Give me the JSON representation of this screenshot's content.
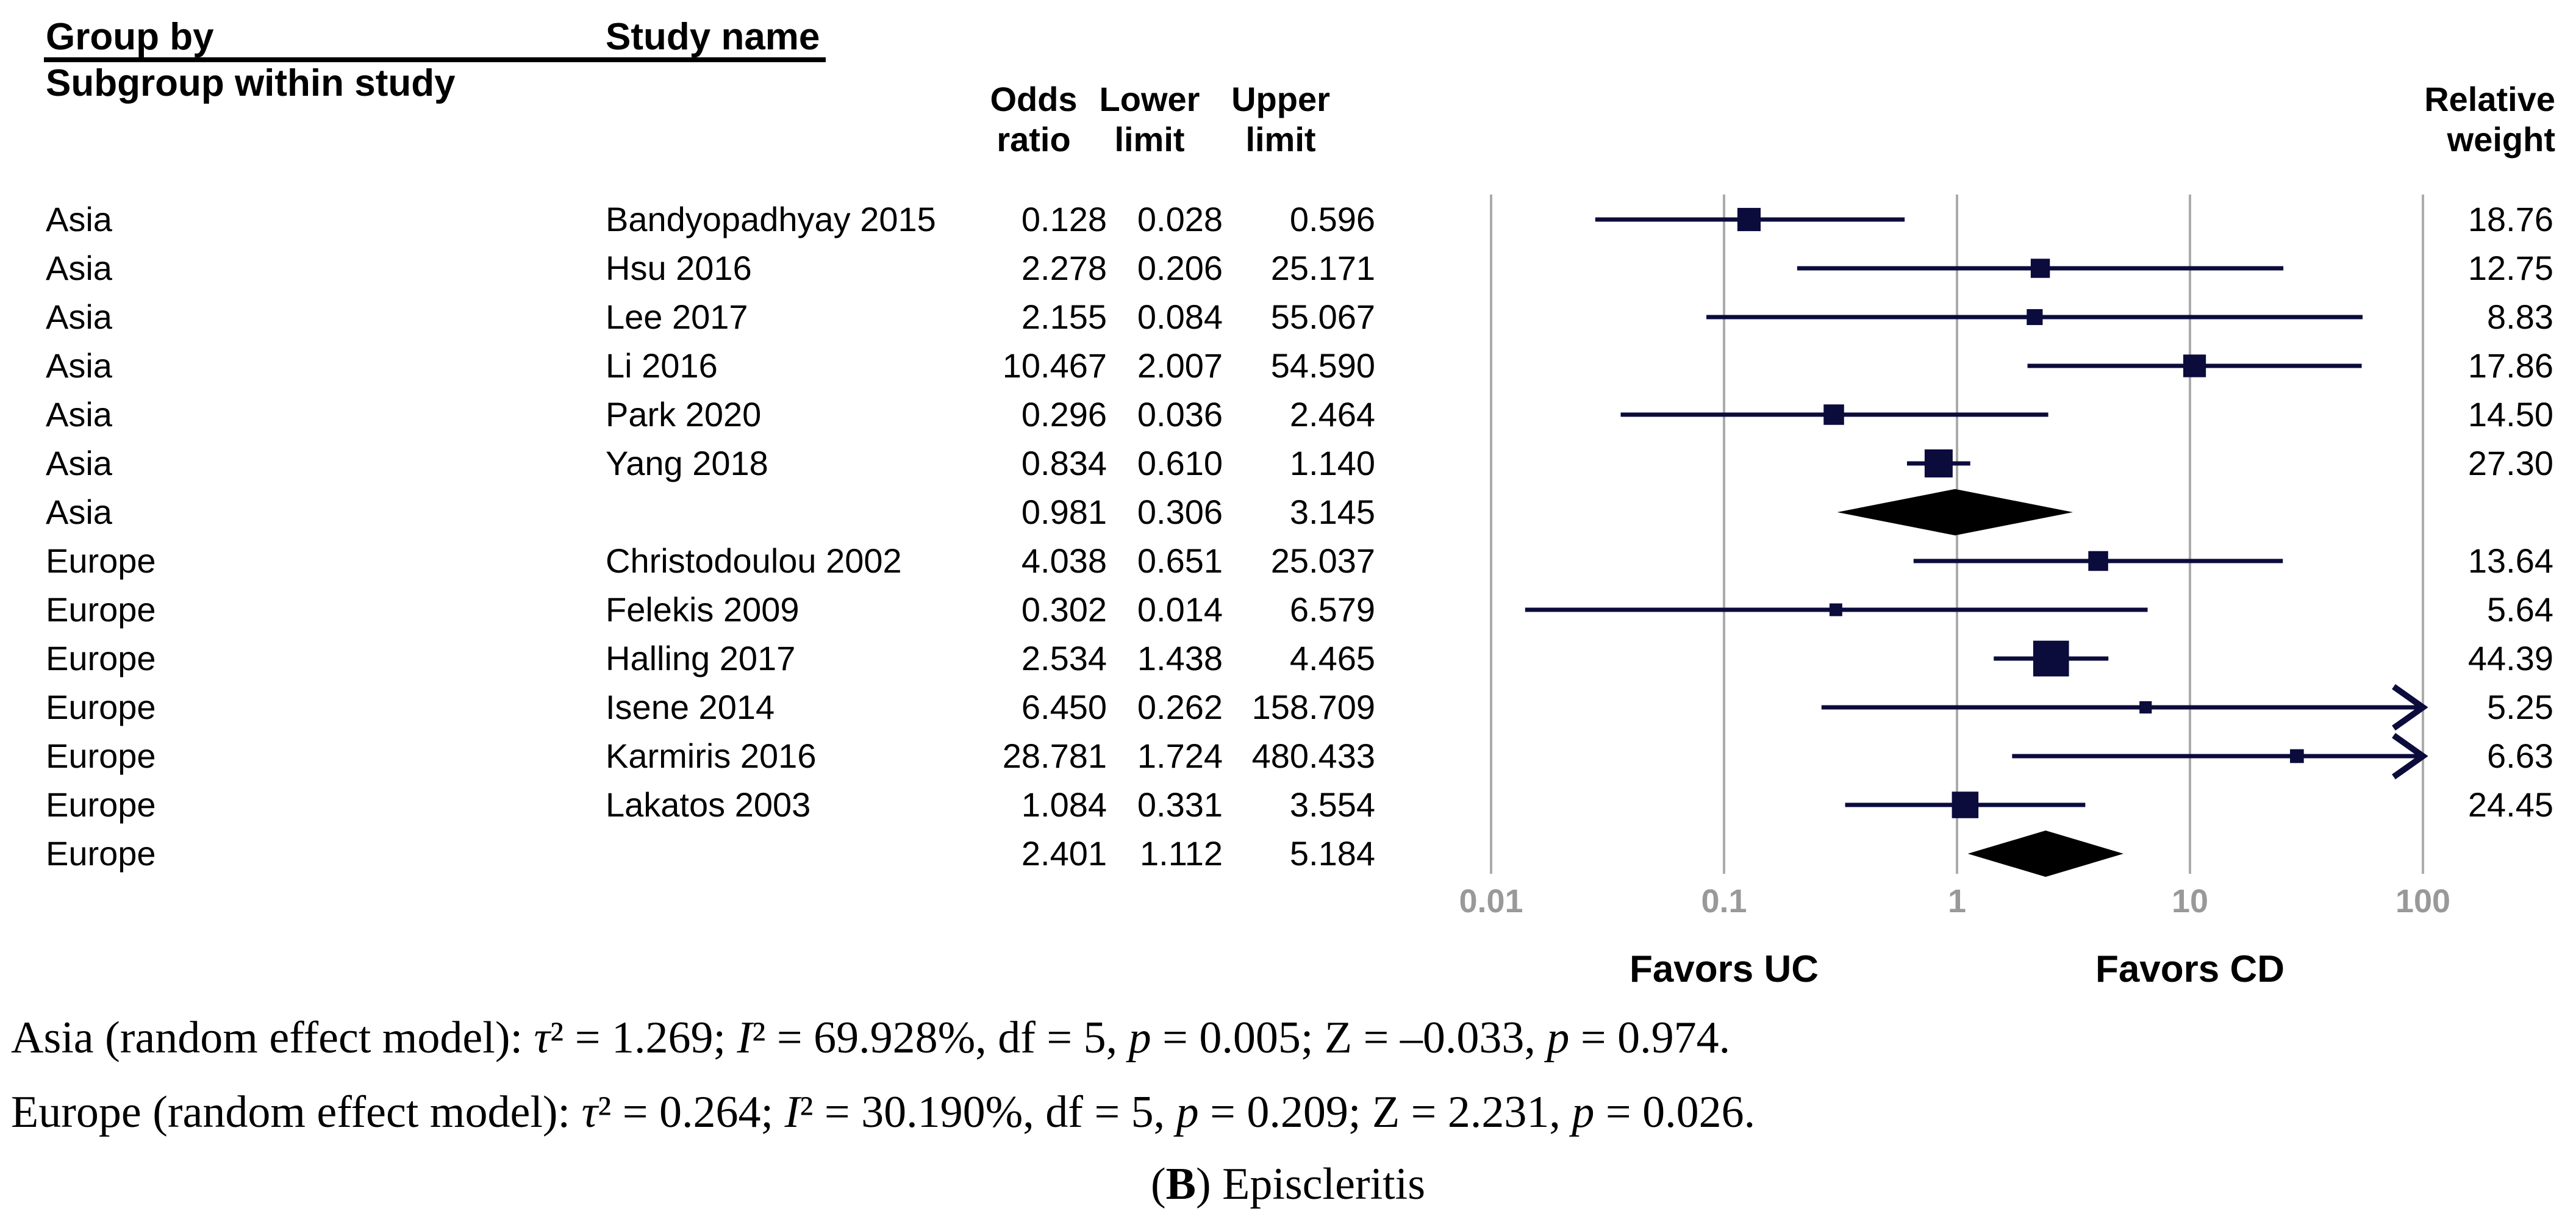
{
  "header": {
    "group_by": "Group by",
    "subgroup_within_study": "Subgroup within study",
    "study_name": "Study name",
    "odds_line1": "Odds",
    "odds_line2": "ratio",
    "lower_line1": "Lower",
    "lower_line2": "limit",
    "upper_line1": "Upper",
    "upper_line2": "limit",
    "weight_line1": "Relative",
    "weight_line2": "weight"
  },
  "axis": {
    "tick_labels": [
      "0.01",
      "0.1",
      "1",
      "10",
      "100"
    ],
    "tick_values": [
      0.01,
      0.1,
      1,
      10,
      100
    ],
    "favors_left": "Favors UC",
    "favors_right": "Favors CD"
  },
  "colors": {
    "marker_navy": "#0b0b3c",
    "diamond_black": "#000000",
    "grid_gray": "#ababab",
    "tick_gray": "#999999",
    "text_black": "#000000"
  },
  "chart_data": {
    "type": "forest",
    "x_scale": "log10",
    "xlim": [
      0.01,
      100
    ],
    "arrow_cap": 100,
    "legend": "square size proportional to relative weight; diamonds are random-effect subgroup summaries",
    "columns": [
      "Group",
      "Study name",
      "Odds ratio",
      "Lower limit",
      "Upper limit",
      "Relative weight"
    ],
    "rows": [
      {
        "group": "Asia",
        "study": "Bandyopadhyay 2015",
        "or": "0.128",
        "lower": "0.028",
        "upper": "0.596",
        "weight": "18.76",
        "kind": "study"
      },
      {
        "group": "Asia",
        "study": "Hsu 2016",
        "or": "2.278",
        "lower": "0.206",
        "upper": "25.171",
        "weight": "12.75",
        "kind": "study"
      },
      {
        "group": "Asia",
        "study": "Lee 2017",
        "or": "2.155",
        "lower": "0.084",
        "upper": "55.067",
        "weight": "8.83",
        "kind": "study"
      },
      {
        "group": "Asia",
        "study": "Li 2016",
        "or": "10.467",
        "lower": "2.007",
        "upper": "54.590",
        "weight": "17.86",
        "kind": "study"
      },
      {
        "group": "Asia",
        "study": "Park 2020",
        "or": "0.296",
        "lower": "0.036",
        "upper": "2.464",
        "weight": "14.50",
        "kind": "study"
      },
      {
        "group": "Asia",
        "study": "Yang 2018",
        "or": "0.834",
        "lower": "0.610",
        "upper": "1.140",
        "weight": "27.30",
        "kind": "study"
      },
      {
        "group": "Asia",
        "study": "",
        "or": "0.981",
        "lower": "0.306",
        "upper": "3.145",
        "weight": "",
        "kind": "summary"
      },
      {
        "group": "Europe",
        "study": "Christodoulou 2002",
        "or": "4.038",
        "lower": "0.651",
        "upper": "25.037",
        "weight": "13.64",
        "kind": "study"
      },
      {
        "group": "Europe",
        "study": "Felekis 2009",
        "or": "0.302",
        "lower": "0.014",
        "upper": "6.579",
        "weight": "5.64",
        "kind": "study"
      },
      {
        "group": "Europe",
        "study": "Halling 2017",
        "or": "2.534",
        "lower": "1.438",
        "upper": "4.465",
        "weight": "44.39",
        "kind": "study"
      },
      {
        "group": "Europe",
        "study": "Isene 2014",
        "or": "6.450",
        "lower": "0.262",
        "upper": "158.709",
        "weight": "5.25",
        "kind": "study"
      },
      {
        "group": "Europe",
        "study": "Karmiris 2016",
        "or": "28.781",
        "lower": "1.724",
        "upper": "480.433",
        "weight": "6.63",
        "kind": "study"
      },
      {
        "group": "Europe",
        "study": "Lakatos 2003",
        "or": "1.084",
        "lower": "0.331",
        "upper": "3.554",
        "weight": "24.45",
        "kind": "study"
      },
      {
        "group": "Europe",
        "study": "",
        "or": "2.401",
        "lower": "1.112",
        "upper": "5.184",
        "weight": "",
        "kind": "summary"
      }
    ],
    "footnotes": [
      [
        {
          "t": "Asia (random effect model): "
        },
        {
          "t": "τ",
          "i": true
        },
        {
          "t": "² = 1.269; "
        },
        {
          "t": "I",
          "i": true
        },
        {
          "t": "² = 69.928%, df = 5, "
        },
        {
          "t": "p",
          "i": true
        },
        {
          "t": " = 0.005; Z = –0.033, "
        },
        {
          "t": "p",
          "i": true
        },
        {
          "t": " = 0.974."
        }
      ],
      [
        {
          "t": "Europe (random effect model): "
        },
        {
          "t": "τ",
          "i": true
        },
        {
          "t": "² = 0.264; "
        },
        {
          "t": "I",
          "i": true
        },
        {
          "t": "² = 30.190%, df = 5, "
        },
        {
          "t": "p",
          "i": true
        },
        {
          "t": " = 0.209; Z = 2.231, "
        },
        {
          "t": "p",
          "i": true
        },
        {
          "t": " = 0.026."
        }
      ]
    ],
    "caption": [
      {
        "t": "("
      },
      {
        "t": "B",
        "b": true
      },
      {
        "t": ") Episcleritis"
      }
    ]
  }
}
